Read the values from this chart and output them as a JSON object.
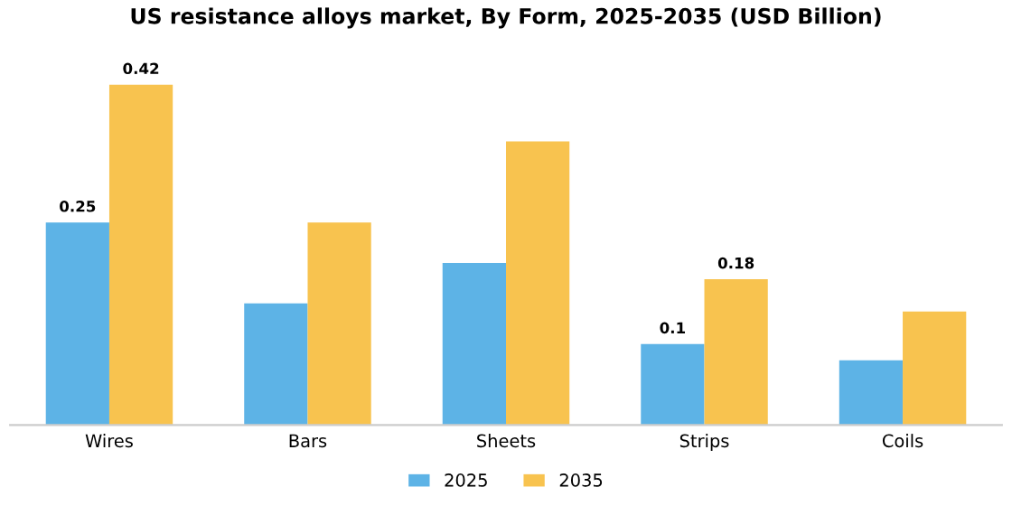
{
  "chart_data": {
    "type": "bar",
    "title": "US resistance alloys market, By Form, 2025-2035 (USD Billion)",
    "categories": [
      "Wires",
      "Bars",
      "Sheets",
      "Strips",
      "Coils"
    ],
    "series": [
      {
        "name": "2025",
        "color": "#5db3e6",
        "values": [
          0.25,
          0.15,
          0.2,
          0.1,
          0.08
        ],
        "value_labels": [
          "0.25",
          null,
          null,
          "0.1",
          null
        ]
      },
      {
        "name": "2035",
        "color": "#f8c34f",
        "values": [
          0.42,
          0.25,
          0.35,
          0.18,
          0.14
        ],
        "value_labels": [
          "0.42",
          null,
          null,
          "0.18",
          null
        ]
      }
    ],
    "legend": "bottom",
    "grid": false
  }
}
